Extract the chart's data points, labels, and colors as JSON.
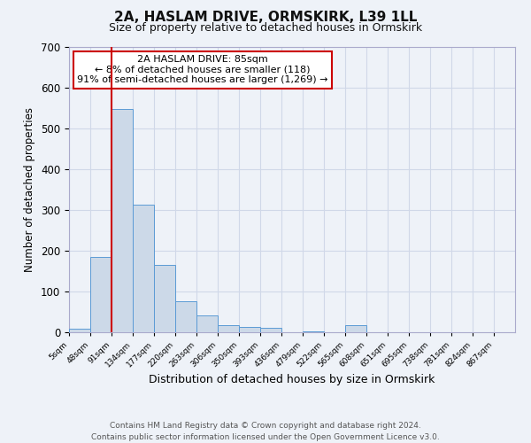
{
  "title": "2A, HASLAM DRIVE, ORMSKIRK, L39 1LL",
  "subtitle": "Size of property relative to detached houses in Ormskirk",
  "xlabel": "Distribution of detached houses by size in Ormskirk",
  "ylabel": "Number of detached properties",
  "bar_values": [
    8,
    185,
    547,
    312,
    165,
    76,
    42,
    17,
    12,
    10,
    0,
    3,
    0,
    17,
    0,
    0,
    0,
    0,
    0,
    0
  ],
  "bin_edges": [
    5,
    48,
    91,
    134,
    177,
    220,
    263,
    306,
    350,
    393,
    436,
    479,
    522,
    565,
    608,
    651,
    695,
    738,
    781,
    824,
    867
  ],
  "tick_labels": [
    "5sqm",
    "48sqm",
    "91sqm",
    "134sqm",
    "177sqm",
    "220sqm",
    "263sqm",
    "306sqm",
    "350sqm",
    "393sqm",
    "436sqm",
    "479sqm",
    "522sqm",
    "565sqm",
    "608sqm",
    "651sqm",
    "695sqm",
    "738sqm",
    "781sqm",
    "824sqm",
    "867sqm"
  ],
  "bar_color": "#ccd9e8",
  "bar_edgecolor": "#5b9bd5",
  "vline_x": 91,
  "vline_color": "#cc0000",
  "ylim": [
    0,
    700
  ],
  "yticks": [
    0,
    100,
    200,
    300,
    400,
    500,
    600,
    700
  ],
  "annotation_title": "2A HASLAM DRIVE: 85sqm",
  "annotation_line1": "← 8% of detached houses are smaller (118)",
  "annotation_line2": "91% of semi-detached houses are larger (1,269) →",
  "annotation_box_color": "#ffffff",
  "annotation_box_edgecolor": "#cc0000",
  "footer_line1": "Contains HM Land Registry data © Crown copyright and database right 2024.",
  "footer_line2": "Contains public sector information licensed under the Open Government Licence v3.0.",
  "background_color": "#eef2f8",
  "grid_color": "#d0d8e8"
}
